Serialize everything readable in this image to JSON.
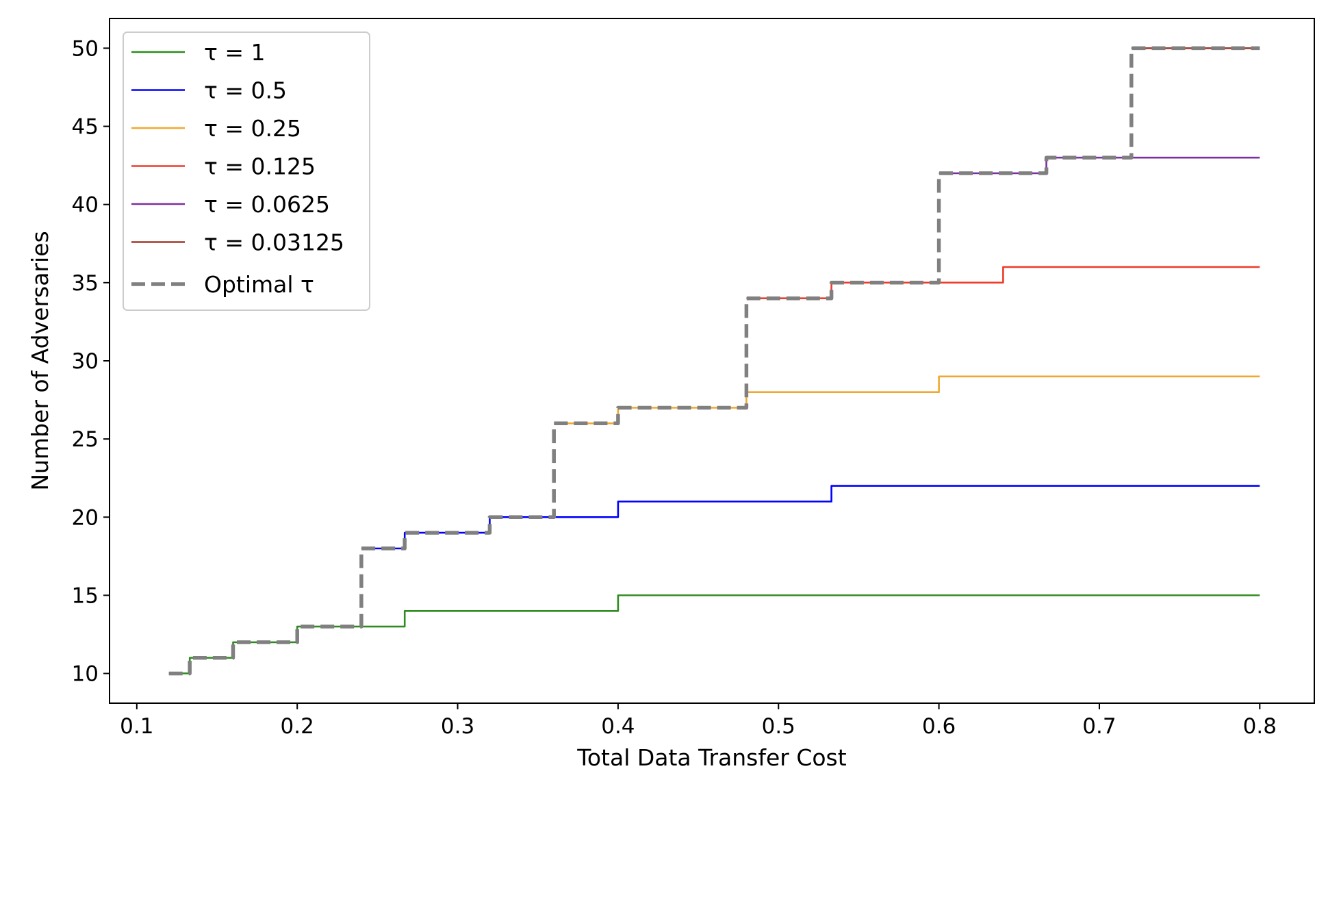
{
  "chart_data": {
    "type": "line",
    "step": true,
    "xlabel": "Total Data Transfer Cost",
    "ylabel": "Number of Adversaries",
    "xlim": [
      0.083,
      0.834
    ],
    "ylim": [
      8.1,
      51.9
    ],
    "xticks": [
      0.1,
      0.2,
      0.3,
      0.4,
      0.5,
      0.6,
      0.7,
      0.8
    ],
    "xtick_labels": [
      "0.1",
      "0.2",
      "0.3",
      "0.4",
      "0.5",
      "0.6",
      "0.7",
      "0.8"
    ],
    "yticks": [
      10,
      15,
      20,
      25,
      30,
      35,
      40,
      45,
      50
    ],
    "ytick_labels": [
      "10",
      "15",
      "20",
      "25",
      "30",
      "35",
      "40",
      "45",
      "50"
    ],
    "grid": false,
    "legend_position": "upper-left",
    "series": [
      {
        "name": "τ = 1",
        "color": "#2e8b1f",
        "dash": false,
        "points": [
          [
            0.12,
            10
          ],
          [
            0.133,
            10
          ],
          [
            0.133,
            11
          ],
          [
            0.16,
            11
          ],
          [
            0.16,
            12
          ],
          [
            0.2,
            12
          ],
          [
            0.2,
            13
          ],
          [
            0.267,
            13
          ],
          [
            0.267,
            14
          ],
          [
            0.4,
            14
          ],
          [
            0.4,
            15
          ],
          [
            0.8,
            15
          ]
        ]
      },
      {
        "name": "τ = 0.5",
        "color": "#0000ff",
        "dash": false,
        "points": [
          [
            0.24,
            18
          ],
          [
            0.267,
            18
          ],
          [
            0.267,
            19
          ],
          [
            0.32,
            19
          ],
          [
            0.32,
            20
          ],
          [
            0.4,
            20
          ],
          [
            0.4,
            21
          ],
          [
            0.533,
            21
          ],
          [
            0.533,
            22
          ],
          [
            0.8,
            22
          ]
        ]
      },
      {
        "name": "τ = 0.25",
        "color": "#f0a830",
        "dash": false,
        "points": [
          [
            0.36,
            26
          ],
          [
            0.4,
            26
          ],
          [
            0.4,
            27
          ],
          [
            0.48,
            27
          ],
          [
            0.48,
            28
          ],
          [
            0.6,
            28
          ],
          [
            0.6,
            29
          ],
          [
            0.8,
            29
          ]
        ]
      },
      {
        "name": "τ = 0.125",
        "color": "#ee3b2b",
        "dash": false,
        "points": [
          [
            0.48,
            34
          ],
          [
            0.533,
            34
          ],
          [
            0.533,
            35
          ],
          [
            0.64,
            35
          ],
          [
            0.64,
            36
          ],
          [
            0.8,
            36
          ]
        ]
      },
      {
        "name": "τ = 0.0625",
        "color": "#7b2fa0",
        "dash": false,
        "points": [
          [
            0.6,
            42
          ],
          [
            0.667,
            42
          ],
          [
            0.667,
            43
          ],
          [
            0.8,
            43
          ]
        ]
      },
      {
        "name": "τ = 0.03125",
        "color": "#a03a2a",
        "dash": false,
        "points": [
          [
            0.72,
            50
          ],
          [
            0.8,
            50
          ]
        ]
      },
      {
        "name": "Optimal τ",
        "color": "#808080",
        "dash": true,
        "points": [
          [
            0.12,
            10
          ],
          [
            0.133,
            10
          ],
          [
            0.133,
            11
          ],
          [
            0.16,
            11
          ],
          [
            0.16,
            12
          ],
          [
            0.2,
            12
          ],
          [
            0.2,
            13
          ],
          [
            0.24,
            13
          ],
          [
            0.24,
            18
          ],
          [
            0.267,
            18
          ],
          [
            0.267,
            19
          ],
          [
            0.32,
            19
          ],
          [
            0.32,
            20
          ],
          [
            0.36,
            20
          ],
          [
            0.36,
            26
          ],
          [
            0.4,
            26
          ],
          [
            0.4,
            27
          ],
          [
            0.48,
            27
          ],
          [
            0.48,
            34
          ],
          [
            0.533,
            34
          ],
          [
            0.533,
            35
          ],
          [
            0.6,
            35
          ],
          [
            0.6,
            42
          ],
          [
            0.667,
            42
          ],
          [
            0.667,
            43
          ],
          [
            0.72,
            43
          ],
          [
            0.72,
            50
          ],
          [
            0.8,
            50
          ]
        ]
      }
    ]
  }
}
